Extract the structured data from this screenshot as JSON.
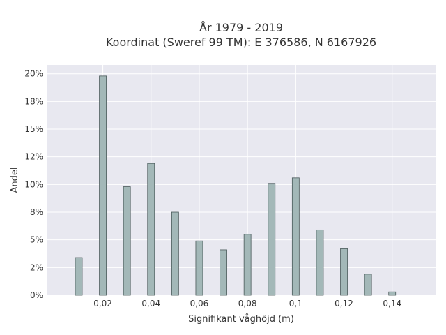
{
  "chart_data": {
    "type": "bar",
    "title": "År 1979 - 2019",
    "subtitle": "Koordinat (Sweref 99 TM): E 376586, N 6167926",
    "xlabel": "Signifikant våghöjd (m)",
    "ylabel": "Andel",
    "xlim": [
      -0.003,
      0.158
    ],
    "ylim": [
      0,
      20.8
    ],
    "grid": true,
    "x_ticks": [
      0.02,
      0.04,
      0.06,
      0.08,
      0.1,
      0.12,
      0.14
    ],
    "x_tick_labels": [
      "0,02",
      "0,04",
      "0,06",
      "0,08",
      "0,1",
      "0,12",
      "0,14"
    ],
    "y_ticks": [
      0,
      2.5,
      5,
      7.5,
      10,
      12.5,
      15,
      17.5,
      20
    ],
    "y_tick_labels": [
      "0%",
      "2%",
      "5%",
      "8%",
      "10%",
      "12%",
      "15%",
      "18%",
      "20%"
    ],
    "categories": [
      0.01,
      0.02,
      0.03,
      0.04,
      0.05,
      0.06,
      0.07,
      0.08,
      0.09,
      0.1,
      0.11,
      0.12,
      0.13,
      0.14
    ],
    "values": [
      3.4,
      19.8,
      9.8,
      11.9,
      7.5,
      4.9,
      4.1,
      5.5,
      10.1,
      10.6,
      5.9,
      4.2,
      1.9,
      0.3
    ],
    "colors": {
      "bar": "#a3b8b8",
      "bar_edge": "#4a5a5a",
      "plot_bg": "#e8e8f0",
      "grid": "#ffffff"
    }
  }
}
